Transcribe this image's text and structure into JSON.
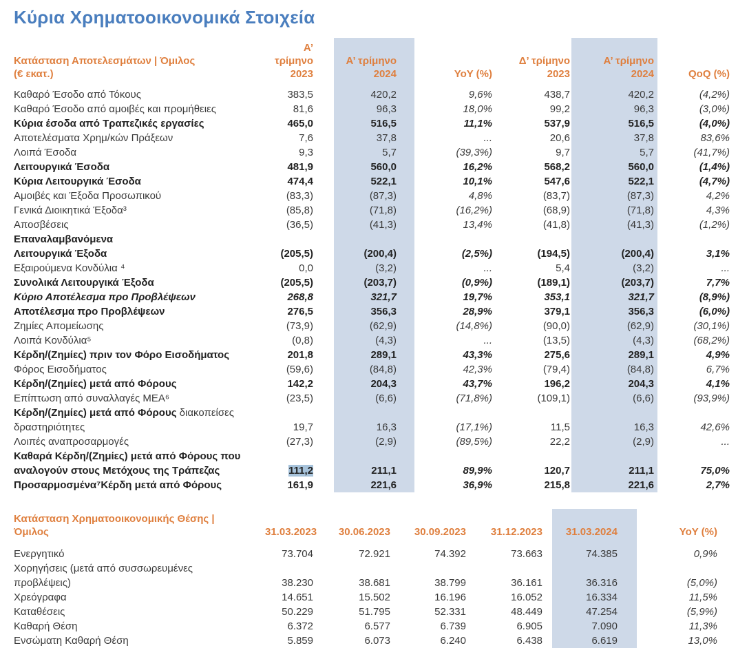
{
  "title": "Κύρια Χρηματοοικονομικά Στοιχεία",
  "colors": {
    "title_blue": "#4a7ebe",
    "header_orange": "#df7f3e",
    "band_blue": "#ced9e8",
    "highlight_blue": "#a6c2da"
  },
  "income_statement": {
    "title_line1": "Κατάσταση Αποτελεσμάτων | Όμιλος",
    "title_line2": "(€ εκατ.)",
    "columns": [
      {
        "line1": "Α’ τρίμηνο",
        "line2": "2023"
      },
      {
        "line1": "Α’ τρίμηνο",
        "line2": "2024",
        "band": true
      },
      {
        "line1": "YoY (%)",
        "line2": "",
        "italic": true
      },
      {
        "line1": "Δ’ τρίμηνο",
        "line2": "2023"
      },
      {
        "line1": "Α’ τρίμηνο",
        "line2": "2024",
        "band": true
      },
      {
        "line1": "QoQ (%)",
        "line2": "",
        "italic": true
      }
    ],
    "rows": [
      {
        "label": "Καθαρό Έσοδο από Τόκους",
        "values": [
          "383,5",
          "420,2",
          "9,6%",
          "438,7",
          "420,2",
          "(4,2%)"
        ]
      },
      {
        "label": "Καθαρό Έσοδο από αμοιβές και προμήθειες",
        "values": [
          "81,6",
          "96,3",
          "18,0%",
          "99,2",
          "96,3",
          "(3,0%)"
        ]
      },
      {
        "label": "Κύρια έσοδα από Τραπεζικές εργασίες",
        "bold": true,
        "values": [
          "465,0",
          "516,5",
          "11,1%",
          "537,9",
          "516,5",
          "(4,0%)"
        ]
      },
      {
        "label": "Αποτελέσματα Χρημ/κών Πράξεων",
        "values": [
          "7,6",
          "37,8",
          "...",
          "20,6",
          "37,8",
          "83,6%"
        ]
      },
      {
        "label": "Λοιπά Έσοδα",
        "values": [
          "9,3",
          "5,7",
          "(39,3%)",
          "9,7",
          "5,7",
          "(41,7%)"
        ]
      },
      {
        "label": "Λειτουργικά Έσοδα",
        "bold": true,
        "values": [
          "481,9",
          "560,0",
          "16,2%",
          "568,2",
          "560,0",
          "(1,4%)"
        ]
      },
      {
        "label": "Κύρια Λειτουργικά Έσοδα",
        "bold": true,
        "values": [
          "474,4",
          "522,1",
          "10,1%",
          "547,6",
          "522,1",
          "(4,7%)"
        ]
      },
      {
        "label": "Αμοιβές και Έξοδα Προσωπικού",
        "values": [
          "(83,3)",
          "(87,3)",
          "4,8%",
          "(83,7)",
          "(87,3)",
          "4,2%"
        ]
      },
      {
        "label": "Γενικά Διοικητικά Έξοδα³",
        "values": [
          "(85,8)",
          "(71,8)",
          "(16,2%)",
          "(68,9)",
          "(71,8)",
          "4,3%"
        ]
      },
      {
        "label": "Αποσβέσεις",
        "values": [
          "(36,5)",
          "(41,3)",
          "13,4%",
          "(41,8)",
          "(41,3)",
          "(1,2%)"
        ]
      },
      {
        "lines": [
          "Επαναλαμβανόμενα",
          "Λειτουργικά Έξοδα"
        ],
        "bold": true,
        "values": [
          "(205,5)",
          "(200,4)",
          "(2,5%)",
          "(194,5)",
          "(200,4)",
          "3,1%"
        ]
      },
      {
        "label": "Εξαιρούμενα Κονδύλια ⁴",
        "values": [
          "0,0",
          "(3,2)",
          "...",
          "5,4",
          "(3,2)",
          "..."
        ]
      },
      {
        "label": "Συνολικά Λειτουργικά Έξοδα",
        "bold": true,
        "values": [
          "(205,5)",
          "(203,7)",
          "(0,9%)",
          "(189,1)",
          "(203,7)",
          "7,7%"
        ]
      },
      {
        "label": "Κύριο Αποτέλεσμα προ Προβλέψεων",
        "bold": true,
        "italic": true,
        "values": [
          "268,8",
          "321,7",
          "19,7%",
          "353,1",
          "321,7",
          "(8,9%)"
        ]
      },
      {
        "label": "Αποτέλεσμα προ Προβλέψεων",
        "bold": true,
        "values": [
          "276,5",
          "356,3",
          "28,9%",
          "379,1",
          "356,3",
          "(6,0%)"
        ]
      },
      {
        "label": "Ζημίες Απομείωσης",
        "values": [
          "(73,9)",
          "(62,9)",
          "(14,8%)",
          "(90,0)",
          "(62,9)",
          "(30,1%)"
        ]
      },
      {
        "label": "Λοιπά Κονδύλια⁵",
        "values": [
          "(0,8)",
          "(4,3)",
          "...",
          "(13,5)",
          "(4,3)",
          "(68,2%)"
        ]
      },
      {
        "label": "Κέρδη/(Ζημίες) πριν τον Φόρο Εισοδήματος",
        "bold": true,
        "values": [
          "201,8",
          "289,1",
          "43,3%",
          "275,6",
          "289,1",
          "4,9%"
        ]
      },
      {
        "label": "Φόρος Εισοδήματος",
        "values": [
          "(59,6)",
          "(84,8)",
          "42,3%",
          "(79,4)",
          "(84,8)",
          "6,7%"
        ]
      },
      {
        "label": "Κέρδη/(Ζημίες) μετά από Φόρους",
        "bold": true,
        "values": [
          "142,2",
          "204,3",
          "43,7%",
          "196,2",
          "204,3",
          "4,1%"
        ]
      },
      {
        "label": "Επίπτωση από συναλλαγές ΜΕΑ⁶",
        "values": [
          "(23,5)",
          "(6,6)",
          "(71,8%)",
          "(109,1)",
          "(6,6)",
          "(93,9%)"
        ]
      },
      {
        "label": "Κέρδη/(Ζημίες) μετά από Φόρους",
        "label2": "διακοπείσες δραστηριότητες",
        "label_bold": true,
        "values": [
          "19,7",
          "16,3",
          "(17,1%)",
          "11,5",
          "16,3",
          "42,6%"
        ]
      },
      {
        "label": "Λοιπές αναπροσαρμογές",
        "values": [
          "(27,3)",
          "(2,9)",
          "(89,5%)",
          "22,2",
          "(2,9)",
          "..."
        ]
      },
      {
        "lines": [
          "Καθαρά Κέρδη/(Ζημίες) μετά από Φόρους που",
          "αναλογούν στους Μετόχους της Τράπεζας"
        ],
        "bold": true,
        "highlight": 0,
        "values": [
          "111,2",
          "211,1",
          "89,9%",
          "120,7",
          "211,1",
          "75,0%"
        ]
      },
      {
        "label": "Προσαρμοσμένα⁷Κέρδη μετά από Φόρους",
        "bold": true,
        "values": [
          "161,9",
          "221,6",
          "36,9%",
          "215,8",
          "221,6",
          "2,7%"
        ]
      }
    ]
  },
  "financial_position": {
    "title_line1": "Κατάσταση Χρηματοοικονομικής Θέσης |",
    "title_line2": "Όμιλος",
    "columns": [
      {
        "line1": "31.03.2023"
      },
      {
        "line1": "30.06.2023"
      },
      {
        "line1": "30.09.2023"
      },
      {
        "line1": "31.12.2023"
      },
      {
        "line1": "31.03.2024",
        "band": true
      },
      {
        "line1": "YoY (%)",
        "italic": true
      }
    ],
    "rows": [
      {
        "label": "Ενεργητικό",
        "values": [
          "73.704",
          "72.921",
          "74.392",
          "73.663",
          "74.385",
          "0,9%"
        ]
      },
      {
        "lines": [
          "Χορηγήσεις (μετά από συσσωρευμένες",
          "προβλέψεις)"
        ],
        "values": [
          "38.230",
          "38.681",
          "38.799",
          "36.161",
          "36.316",
          "(5,0%)"
        ]
      },
      {
        "label": "Χρεόγραφα",
        "values": [
          "14.651",
          "15.502",
          "16.196",
          "16.052",
          "16.334",
          "11,5%"
        ]
      },
      {
        "label": "Καταθέσεις",
        "values": [
          "50.229",
          "51.795",
          "52.331",
          "48.449",
          "47.254",
          "(5,9%)"
        ]
      },
      {
        "label": "Καθαρή Θέση",
        "values": [
          "6.372",
          "6.577",
          "6.739",
          "6.905",
          "7.090",
          "11,3%"
        ]
      },
      {
        "label": "Ενσώματη Καθαρή Θέση",
        "values": [
          "5.859",
          "6.073",
          "6.240",
          "6.438",
          "6.619",
          "13,0%"
        ]
      }
    ]
  }
}
